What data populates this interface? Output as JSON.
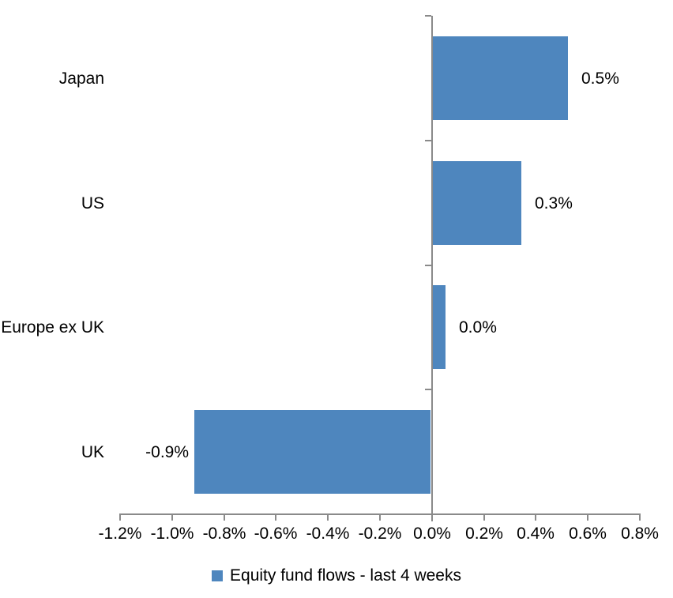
{
  "chart_data": {
    "type": "bar",
    "orientation": "horizontal",
    "title": "",
    "xlabel": "",
    "ylabel": "",
    "categories": [
      "Japan",
      "US",
      "Europe ex UK",
      "UK"
    ],
    "series": [
      {
        "name": "Equity fund flows - last 4 weeks",
        "values": [
          0.5,
          0.3,
          0.0,
          -0.9
        ],
        "data_labels": [
          "0.5%",
          "0.3%",
          "0.0%",
          "-0.9%"
        ],
        "bar_extents_pct": [
          0.52,
          0.34,
          0.05,
          -0.91
        ],
        "color": "#4E86BE"
      }
    ],
    "xlim": [
      -1.2,
      0.8
    ],
    "x_tick_values": [
      -1.2,
      -1.0,
      -0.8,
      -0.6,
      -0.4,
      -0.2,
      0.0,
      0.2,
      0.4,
      0.6,
      0.8
    ],
    "x_tick_labels": [
      "-1.2%",
      "-1.0%",
      "-0.8%",
      "-0.6%",
      "-0.4%",
      "-0.2%",
      "0.0%",
      "0.2%",
      "0.4%",
      "0.6%",
      "0.8%"
    ],
    "grid": false,
    "legend": {
      "position": "bottom",
      "label": "Equity fund flows - last 4 weeks",
      "swatch_color": "#4E86BE"
    },
    "colors": {
      "bar": "#4E86BE",
      "axis": "#8A8A8A",
      "text": "#000000",
      "background": "#FFFFFF"
    }
  }
}
